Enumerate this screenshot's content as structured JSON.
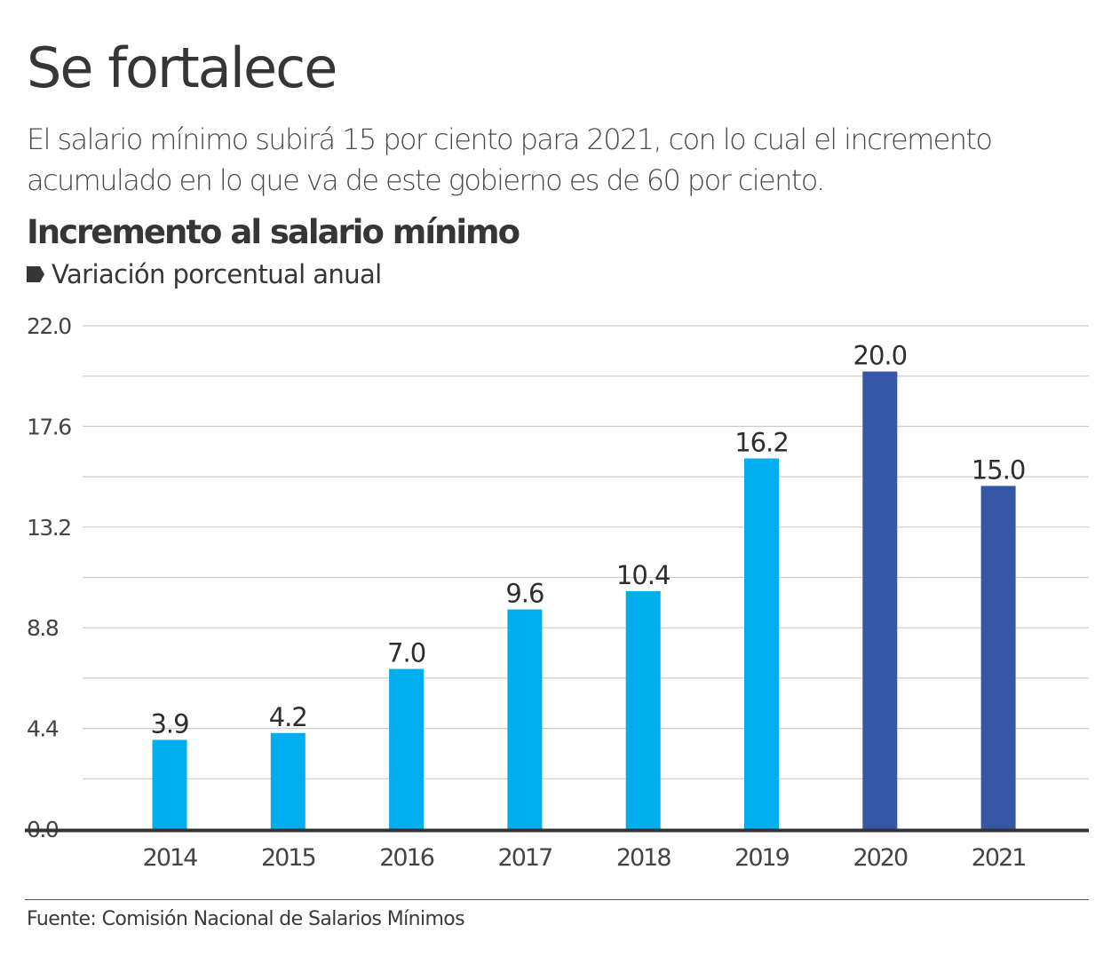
{
  "header": {
    "title": "Se fortalece",
    "subtitle": "El salario mínimo subirá 15 por ciento para 2021, con lo cual el incremento acumulado en lo que va de este gobierno es de 60 por ciento."
  },
  "chart_header": {
    "title": "Incremento al salario mínimo",
    "legend_icon": "pentagon-arrow-marker",
    "legend_label": "Variación porcentual anual"
  },
  "footer": {
    "source": "Fuente: Comisión Nacional de Salarios Mínimos"
  },
  "colors": {
    "bar_primary": "#00AEEF",
    "bar_highlight": "#3656A6",
    "gridline": "#cccccc",
    "axis": "#333333",
    "text": "#363636"
  },
  "chart_data": {
    "type": "bar",
    "title": "Incremento al salario mínimo",
    "subtitle": "Variación porcentual anual",
    "xlabel": "",
    "ylabel": "",
    "categories": [
      "2014",
      "2015",
      "2016",
      "2017",
      "2018",
      "2019",
      "2020",
      "2021"
    ],
    "values": [
      3.9,
      4.2,
      7.0,
      9.6,
      10.4,
      16.2,
      20.0,
      15.0
    ],
    "value_labels": [
      "3.9",
      "4.2",
      "7.0",
      "9.6",
      "10.4",
      "16.2",
      "20.0",
      "15.0"
    ],
    "highlight": [
      false,
      false,
      false,
      false,
      false,
      false,
      true,
      true
    ],
    "ylim": [
      0,
      22.0
    ],
    "yticks": [
      0.0,
      4.4,
      8.8,
      13.2,
      17.6,
      22.0
    ],
    "ytick_labels": [
      "0.0",
      "4.4",
      "8.8",
      "13.2",
      "17.6",
      "22.0"
    ],
    "minor_gridlines": [
      2.2,
      6.6,
      11.0,
      15.4,
      19.8
    ],
    "grid": true,
    "legend": "top-left"
  }
}
